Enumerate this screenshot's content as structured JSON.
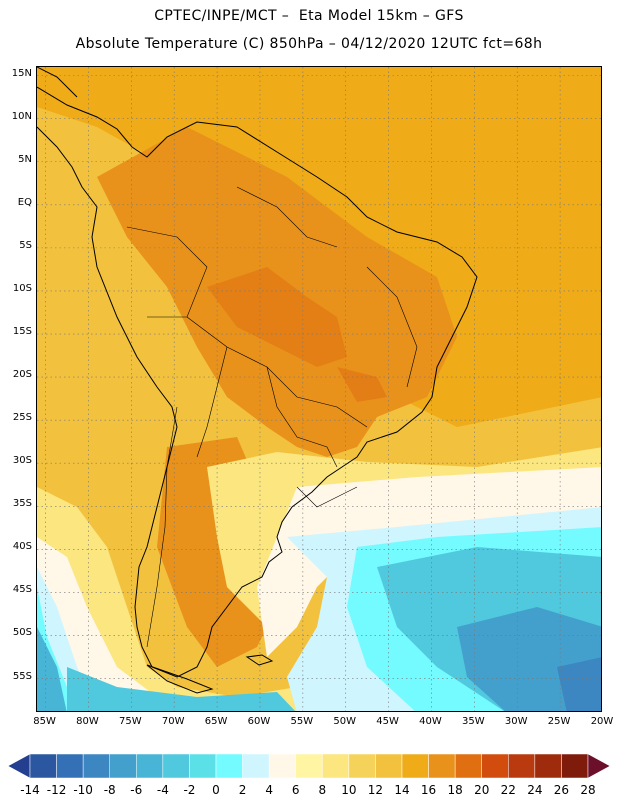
{
  "header": {
    "line1": "CPTEC/INPE/MCT –  Eta Model 15km – GFS",
    "line2": "Absolute Temperature (C) 850hPa – 04/12/2020 12UTC fct=68h"
  },
  "map": {
    "lat_labels": [
      "15N",
      "10N",
      "5N",
      "EQ",
      "5S",
      "10S",
      "15S",
      "20S",
      "25S",
      "30S",
      "35S",
      "40S",
      "45S",
      "50S",
      "55S"
    ],
    "lon_labels": [
      "85W",
      "80W",
      "75W",
      "70W",
      "65W",
      "60W",
      "55W",
      "50W",
      "45W",
      "40W",
      "35W",
      "30W",
      "25W",
      "20W"
    ],
    "lat_range": [
      16,
      -59
    ],
    "lon_range": [
      -86,
      -20
    ]
  },
  "colorbar": {
    "levels": [
      "-14",
      "-12",
      "-10",
      "-8",
      "-6",
      "-4",
      "-2",
      "0",
      "2",
      "4",
      "6",
      "8",
      "10",
      "12",
      "14",
      "16",
      "18",
      "20",
      "22",
      "24",
      "26",
      "28"
    ],
    "colors": [
      "#243f8f",
      "#2b56a0",
      "#3470b5",
      "#3c86c2",
      "#43a0cd",
      "#49b5d6",
      "#50c8dd",
      "#5ce0e8",
      "#74fbff",
      "#cff5ff",
      "#fff7e8",
      "#fff5a3",
      "#fbe680",
      "#f5d35a",
      "#f2c23e",
      "#efab18",
      "#e8921c",
      "#df6f10",
      "#d24d0d",
      "#b83a0e",
      "#9d2b0c",
      "#7e1b0b",
      "#6b0f2b"
    ]
  }
}
